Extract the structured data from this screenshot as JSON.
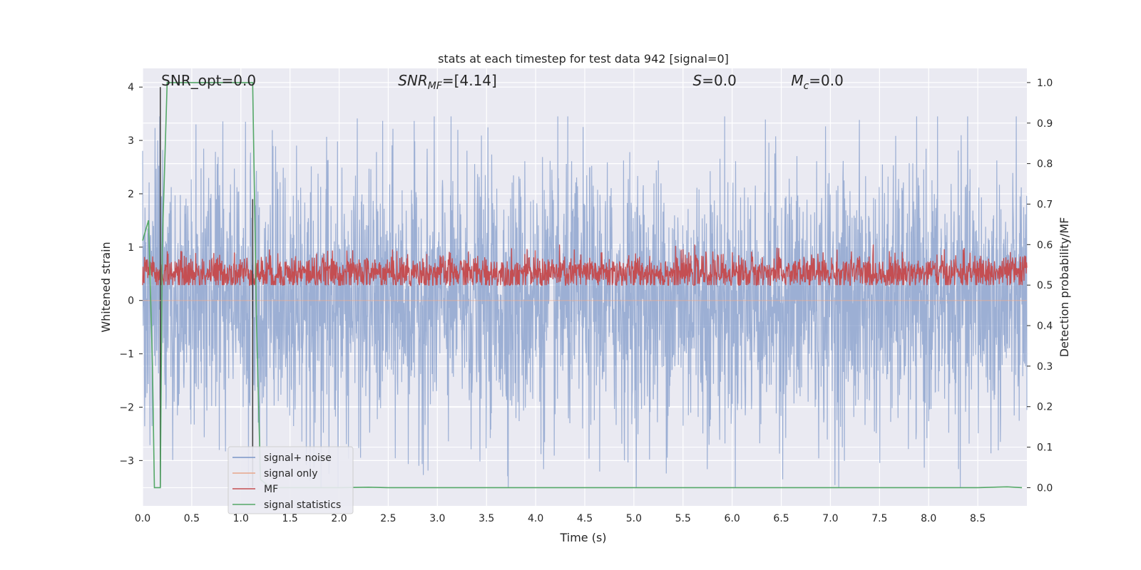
{
  "chart_data": {
    "type": "line",
    "title": "stats at each timestep for test data 942 [signal=0]",
    "xlabel": "Time (s)",
    "ylabel_left": "Whitened strain",
    "ylabel_right": "Detection probability/MF",
    "xlim": [
      0.0,
      9.0
    ],
    "ylim_left": [
      -3.85,
      4.35
    ],
    "ylim_right": [
      -0.045,
      1.035
    ],
    "xticks": [
      "0.0",
      "0.5",
      "1.0",
      "1.5",
      "2.0",
      "2.5",
      "3.0",
      "3.5",
      "4.0",
      "4.5",
      "5.0",
      "5.5",
      "6.0",
      "6.5",
      "7.0",
      "7.5",
      "8.0",
      "8.5"
    ],
    "xtick_values": [
      0.0,
      0.5,
      1.0,
      1.5,
      2.0,
      2.5,
      3.0,
      3.5,
      4.0,
      4.5,
      5.0,
      5.5,
      6.0,
      6.5,
      7.0,
      7.5,
      8.0,
      8.5
    ],
    "yticks_left": [
      "−3",
      "−2",
      "−1",
      "0",
      "1",
      "2",
      "3",
      "4"
    ],
    "ytick_values_left": [
      -3,
      -2,
      -1,
      0,
      1,
      2,
      3,
      4
    ],
    "yticks_right": [
      "0.0",
      "0.1",
      "0.2",
      "0.3",
      "0.4",
      "0.5",
      "0.6",
      "0.7",
      "0.8",
      "0.9",
      "1.0"
    ],
    "ytick_values_right": [
      0.0,
      0.1,
      0.2,
      0.3,
      0.4,
      0.5,
      0.6,
      0.7,
      0.8,
      0.9,
      1.0
    ],
    "grid": true,
    "legend_position": "lower-left",
    "annotations": [
      {
        "text": "SNR_opt=0.0",
        "x": 0.19,
        "y": 4.0
      },
      {
        "text": "SNR_MF=[4.14]",
        "x": 2.6,
        "y": 4.0
      },
      {
        "text": "S=0.0",
        "x": 5.6,
        "y": 4.0
      },
      {
        "text": "M_c=0.0",
        "x": 6.6,
        "y": 4.0
      }
    ],
    "vlines": [
      {
        "x": 0.18,
        "y": [
          -3.5,
          4.0
        ],
        "color": "#444444"
      },
      {
        "x": 1.12,
        "y": [
          -3.5,
          1.9
        ],
        "color": "#444444"
      }
    ],
    "series": [
      {
        "name": "signal+ noise",
        "color": "#7b96c8",
        "axis": "left",
        "noise": {
          "center": 0.0,
          "typical_amplitude": 1.55,
          "max": 3.45,
          "min": -3.5
        }
      },
      {
        "name": "signal only",
        "color": "#e8a68a",
        "axis": "left",
        "values_note_x": [
          0.0,
          9.0
        ],
        "values": [
          0.0,
          0.0
        ]
      },
      {
        "name": "MF",
        "color": "#c44e52",
        "axis": "right",
        "noise": {
          "center": 0.53,
          "typical_amplitude": 0.05,
          "max": 0.6,
          "min": 0.5
        }
      },
      {
        "name": "signal statistics",
        "color": "#55a868",
        "axis": "right",
        "x": [
          0.0,
          0.06,
          0.1,
          0.12,
          0.18,
          0.2,
          0.25,
          0.5,
          1.0,
          1.1,
          1.12,
          1.16,
          1.2,
          1.3,
          1.5,
          2.0,
          2.3,
          2.5,
          3.0,
          5.0,
          7.0,
          8.5,
          8.8,
          8.95
        ],
        "y": [
          0.61,
          0.66,
          0.3,
          0.0,
          0.0,
          0.6,
          1.0,
          1.0,
          1.0,
          1.0,
          1.0,
          0.4,
          0.02,
          0.0,
          0.0,
          0.0,
          0.001,
          0.0,
          0.0,
          0.0,
          0.0,
          0.0,
          0.002,
          0.0
        ]
      }
    ]
  }
}
